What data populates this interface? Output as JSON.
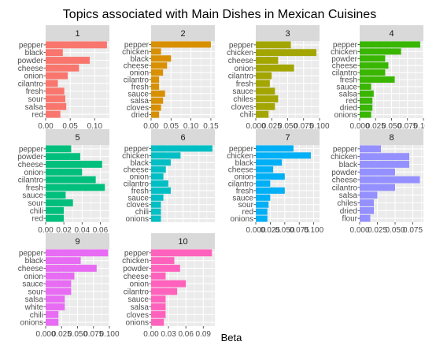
{
  "chart_data": {
    "type": "bar",
    "title": "Topics associated with Main Dishes in Mexican Cuisines",
    "xlabel": "Beta",
    "ylabel": "",
    "grid": true,
    "legend": "none",
    "panels": [
      {
        "label": "1",
        "color": "#F8766D",
        "xlim": [
          0,
          0.13
        ],
        "xticks": [
          0.0,
          0.05,
          0.1
        ],
        "xtick_labels": [
          "0.00",
          "0.05",
          "0.10"
        ],
        "categories": [
          "pepper",
          "black",
          "powder",
          "cheese",
          "onion",
          "cilantro",
          "fresh",
          "sour",
          "salsa",
          "red"
        ],
        "values": [
          0.125,
          0.035,
          0.09,
          0.068,
          0.045,
          0.025,
          0.038,
          0.04,
          0.042,
          0.03
        ]
      },
      {
        "label": "2",
        "color": "#D89000",
        "xlim": [
          0,
          0.16
        ],
        "xticks": [
          0.0,
          0.05,
          0.1,
          0.15
        ],
        "xtick_labels": [
          "0.00",
          "0.05",
          "0.10",
          "0.15"
        ],
        "categories": [
          "pepper",
          "chicken",
          "black",
          "cheese",
          "onion",
          "cilantro",
          "fresh",
          "sauce",
          "salsa",
          "cloves",
          "dried"
        ],
        "values": [
          0.15,
          0.025,
          0.05,
          0.04,
          0.03,
          0.02,
          0.02,
          0.035,
          0.03,
          0.025,
          0.02
        ]
      },
      {
        "label": "3",
        "color": "#A3A500",
        "xlim": [
          0,
          0.1
        ],
        "xticks": [
          0.0,
          0.025,
          0.05,
          0.075,
          0.1
        ],
        "xtick_labels": [
          "0.000",
          "0.025",
          "0.050",
          "0.075",
          "0.100"
        ],
        "categories": [
          "pepper",
          "chicken",
          "cheese",
          "onion",
          "cilantro",
          "fresh",
          "sauce",
          "chiles",
          "cloves",
          "chili"
        ],
        "values": [
          0.055,
          0.095,
          0.035,
          0.06,
          0.025,
          0.022,
          0.03,
          0.035,
          0.03,
          0.02
        ]
      },
      {
        "label": "4",
        "color": "#39B600",
        "xlim": [
          0,
          0.1
        ],
        "xticks": [
          0.0,
          0.025,
          0.05,
          0.075,
          0.1
        ],
        "xtick_labels": [
          "0.000",
          "0.025",
          "0.050",
          "0.075",
          "0.100"
        ],
        "categories": [
          "pepper",
          "chicken",
          "powder",
          "cheese",
          "cilantro",
          "fresh",
          "sauce",
          "salsa",
          "red",
          "dried",
          "onions"
        ],
        "values": [
          0.095,
          0.065,
          0.04,
          0.045,
          0.04,
          0.055,
          0.018,
          0.022,
          0.02,
          0.02,
          0.018
        ]
      },
      {
        "label": "5",
        "color": "#00BF7D",
        "xlim": [
          0,
          0.07
        ],
        "xticks": [
          0.0,
          0.02,
          0.04,
          0.06
        ],
        "xtick_labels": [
          "0.00",
          "0.02",
          "0.04",
          "0.06"
        ],
        "categories": [
          "pepper",
          "powder",
          "cheese",
          "onion",
          "cilantro",
          "fresh",
          "sauce",
          "sour",
          "chili",
          "red"
        ],
        "values": [
          0.028,
          0.038,
          0.062,
          0.04,
          0.055,
          0.065,
          0.022,
          0.03,
          0.02,
          0.02
        ]
      },
      {
        "label": "6",
        "color": "#00BFC4",
        "xlim": [
          0,
          0.13
        ],
        "xticks": [],
        "xtick_labels": [],
        "categories": [
          "pepper",
          "chicken",
          "black",
          "cheese",
          "onion",
          "cilantro",
          "fresh",
          "sauce",
          "cloves",
          "chili",
          "onions"
        ],
        "values": [
          0.125,
          0.06,
          0.04,
          0.03,
          0.025,
          0.035,
          0.04,
          0.025,
          0.02,
          0.02,
          0.02
        ]
      },
      {
        "label": "7",
        "color": "#00B0F6",
        "xlim": [
          0,
          0.11
        ],
        "xticks": [
          0.0,
          0.025,
          0.05,
          0.075,
          0.1
        ],
        "xtick_labels": [
          "0.000",
          "0.025",
          "0.050",
          "0.075",
          "0.100"
        ],
        "categories": [
          "pepper",
          "chicken",
          "black",
          "cheese",
          "onion",
          "cilantro",
          "fresh",
          "sauce",
          "sour",
          "red",
          "onions"
        ],
        "values": [
          0.065,
          0.095,
          0.045,
          0.03,
          0.05,
          0.025,
          0.05,
          0.025,
          0.022,
          0.02,
          0.02
        ]
      },
      {
        "label": "8",
        "color": "#9590FF",
        "xlim": [
          0,
          0.09
        ],
        "xticks": [
          0.0,
          0.025,
          0.05,
          0.075
        ],
        "xtick_labels": [
          "0.000",
          "0.025",
          "0.050",
          "0.075"
        ],
        "categories": [
          "pepper",
          "chicken",
          "black",
          "powder",
          "cheese",
          "cilantro",
          "salsa",
          "chiles",
          "dried",
          "flour"
        ],
        "values": [
          0.03,
          0.07,
          0.07,
          0.05,
          0.085,
          0.05,
          0.025,
          0.02,
          0.02,
          0.015
        ]
      },
      {
        "label": "9",
        "color": "#E76BF3",
        "xlim": [
          0,
          0.1
        ],
        "xticks": [
          0.0,
          0.025,
          0.05,
          0.075,
          0.1
        ],
        "xtick_labels": [
          "0.000",
          "0.025",
          "0.050",
          "0.075",
          "0.100"
        ],
        "categories": [
          "pepper",
          "black",
          "cheese",
          "onion",
          "sauce",
          "sour",
          "salsa",
          "white",
          "chili",
          "onions"
        ],
        "values": [
          0.098,
          0.055,
          0.08,
          0.045,
          0.04,
          0.04,
          0.03,
          0.03,
          0.02,
          0.02
        ]
      },
      {
        "label": "10",
        "color": "#FF62BC",
        "xlim": [
          0,
          0.11
        ],
        "xticks": [
          0.0,
          0.03,
          0.06,
          0.09
        ],
        "xtick_labels": [
          "0.00",
          "0.03",
          "0.06",
          "0.09"
        ],
        "categories": [
          "pepper",
          "chicken",
          "powder",
          "cheese",
          "onion",
          "cilantro",
          "sauce",
          "salsa",
          "cloves",
          "onions"
        ],
        "values": [
          0.105,
          0.04,
          0.05,
          0.025,
          0.06,
          0.045,
          0.025,
          0.025,
          0.025,
          0.022
        ]
      }
    ]
  }
}
